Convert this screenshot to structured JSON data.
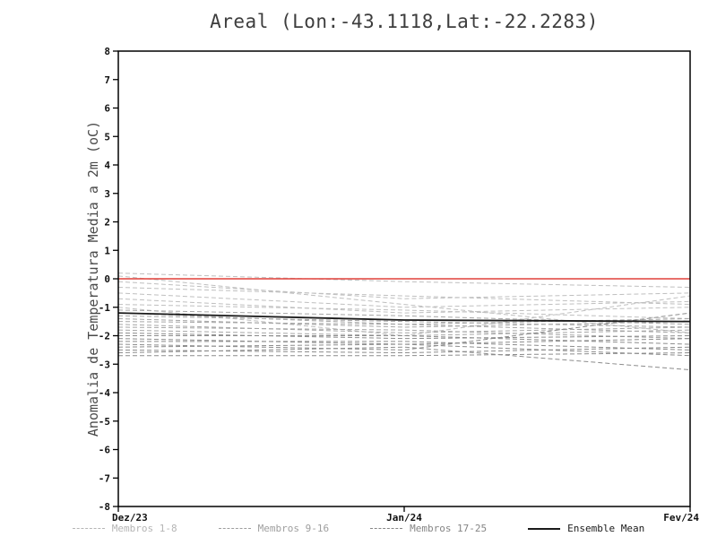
{
  "chart_data": {
    "type": "line",
    "title": "Areal (Lon:-43.1118,Lat:-22.2283)",
    "ylabel": "Anomalia de Temperatura Media a 2m (oC)",
    "xlabel": "",
    "x_categories": [
      "Dez/23",
      "Jan/24",
      "Fev/24"
    ],
    "ylim": [
      -8,
      8
    ],
    "ytick_step": 1,
    "grid": false,
    "zero_line": {
      "value": 0,
      "color": "#e0403a"
    },
    "groups": [
      {
        "name": "Membros 1-8",
        "color": "#bfbfbf",
        "dash": "5 3",
        "members": [
          [
            0.2,
            -0.1,
            -0.3
          ],
          [
            0.1,
            -0.9,
            -1.9
          ],
          [
            -0.1,
            -0.7,
            -0.5
          ],
          [
            -0.3,
            -0.6,
            -0.9
          ],
          [
            -0.5,
            -1.0,
            -0.8
          ],
          [
            -0.7,
            -1.2,
            -1.0
          ],
          [
            -0.9,
            -1.1,
            -1.4
          ],
          [
            -1.0,
            -2.0,
            -0.6
          ]
        ]
      },
      {
        "name": "Membros 9-16",
        "color": "#a6a6a6",
        "dash": "5 3",
        "members": [
          [
            -1.1,
            -1.3,
            -1.6
          ],
          [
            -1.2,
            -1.6,
            -1.4
          ],
          [
            -1.3,
            -1.5,
            -1.7
          ],
          [
            -1.4,
            -1.7,
            -1.5
          ],
          [
            -1.5,
            -1.6,
            -1.9
          ],
          [
            -1.6,
            -1.9,
            -1.7
          ],
          [
            -1.7,
            -1.8,
            -2.1
          ],
          [
            -1.8,
            -2.0,
            -1.8
          ]
        ]
      },
      {
        "name": "Membros 17-25",
        "color": "#8c8c8c",
        "dash": "5 3",
        "members": [
          [
            -1.9,
            -2.1,
            -2.0
          ],
          [
            -2.0,
            -2.0,
            -2.3
          ],
          [
            -2.1,
            -2.3,
            -2.1
          ],
          [
            -2.2,
            -2.2,
            -2.5
          ],
          [
            -2.3,
            -2.5,
            -1.2
          ],
          [
            -2.4,
            -2.3,
            -2.7
          ],
          [
            -2.5,
            -2.6,
            -2.4
          ],
          [
            -2.6,
            -2.4,
            -3.2
          ],
          [
            -2.7,
            -2.7,
            -2.6
          ]
        ]
      }
    ],
    "mean": {
      "name": "Ensemble Mean",
      "color": "#1a1a1a",
      "values": [
        -1.2,
        -1.45,
        -1.5
      ]
    },
    "legend": [
      {
        "label": "Membros 1-8",
        "style": "dashed",
        "color": "#b5b5b5"
      },
      {
        "label": "Membros 9-16",
        "style": "dashed",
        "color": "#9e9e9e"
      },
      {
        "label": "Membros 17-25",
        "style": "dashed",
        "color": "#858585"
      },
      {
        "label": "Ensemble Mean",
        "style": "solid",
        "color": "#1a1a1a"
      }
    ]
  }
}
